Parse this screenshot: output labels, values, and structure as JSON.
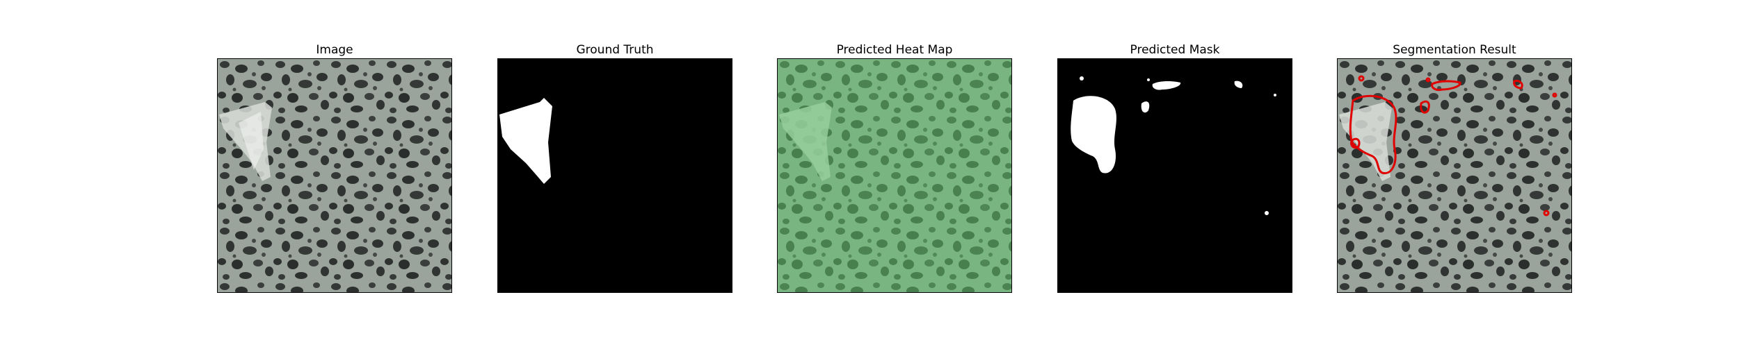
{
  "panels": [
    {
      "title": "Image"
    },
    {
      "title": "Ground Truth"
    },
    {
      "title": "Predicted Heat Map"
    },
    {
      "title": "Predicted Mask"
    },
    {
      "title": "Segmentation Result"
    }
  ],
  "colors": {
    "texture_background": "#9aa49c",
    "texture_spots": "#2e3230",
    "heat_overlay": "#5fc26a",
    "mask": "#ffffff",
    "mask_background": "#000000",
    "contour": "#e00000"
  }
}
